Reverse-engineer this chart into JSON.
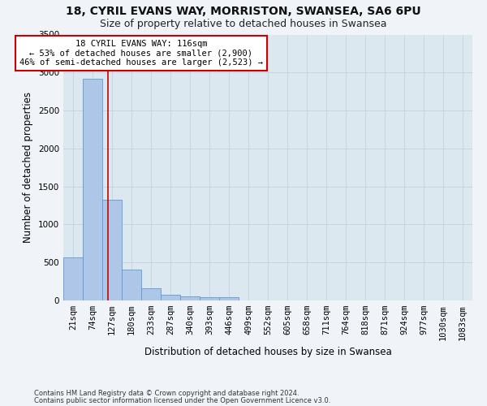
{
  "title1": "18, CYRIL EVANS WAY, MORRISTON, SWANSEA, SA6 6PU",
  "title2": "Size of property relative to detached houses in Swansea",
  "xlabel": "Distribution of detached houses by size in Swansea",
  "ylabel": "Number of detached properties",
  "footer1": "Contains HM Land Registry data © Crown copyright and database right 2024.",
  "footer2": "Contains public sector information licensed under the Open Government Licence v3.0.",
  "bin_labels": [
    "21sqm",
    "74sqm",
    "127sqm",
    "180sqm",
    "233sqm",
    "287sqm",
    "340sqm",
    "393sqm",
    "446sqm",
    "499sqm",
    "552sqm",
    "605sqm",
    "658sqm",
    "711sqm",
    "764sqm",
    "818sqm",
    "871sqm",
    "924sqm",
    "977sqm",
    "1030sqm",
    "1083sqm"
  ],
  "bar_values": [
    570,
    2920,
    1320,
    410,
    155,
    80,
    55,
    45,
    40,
    0,
    0,
    0,
    0,
    0,
    0,
    0,
    0,
    0,
    0,
    0,
    0
  ],
  "bar_color": "#aec6e8",
  "bar_edge_color": "#5b9bd5",
  "vline_color": "#cc0000",
  "annotation_text": "18 CYRIL EVANS WAY: 116sqm\n← 53% of detached houses are smaller (2,900)\n46% of semi-detached houses are larger (2,523) →",
  "annotation_box_color": "#ffffff",
  "annotation_box_edge": "#cc0000",
  "ylim": [
    0,
    3500
  ],
  "yticks": [
    0,
    500,
    1000,
    1500,
    2000,
    2500,
    3000,
    3500
  ],
  "grid_color": "#c8d4e0",
  "bg_color": "#dce8f0",
  "title1_fontsize": 10,
  "title2_fontsize": 9,
  "xlabel_fontsize": 8.5,
  "ylabel_fontsize": 8.5,
  "tick_fontsize": 7.5,
  "annot_fontsize": 7.5,
  "footer_fontsize": 6.0
}
